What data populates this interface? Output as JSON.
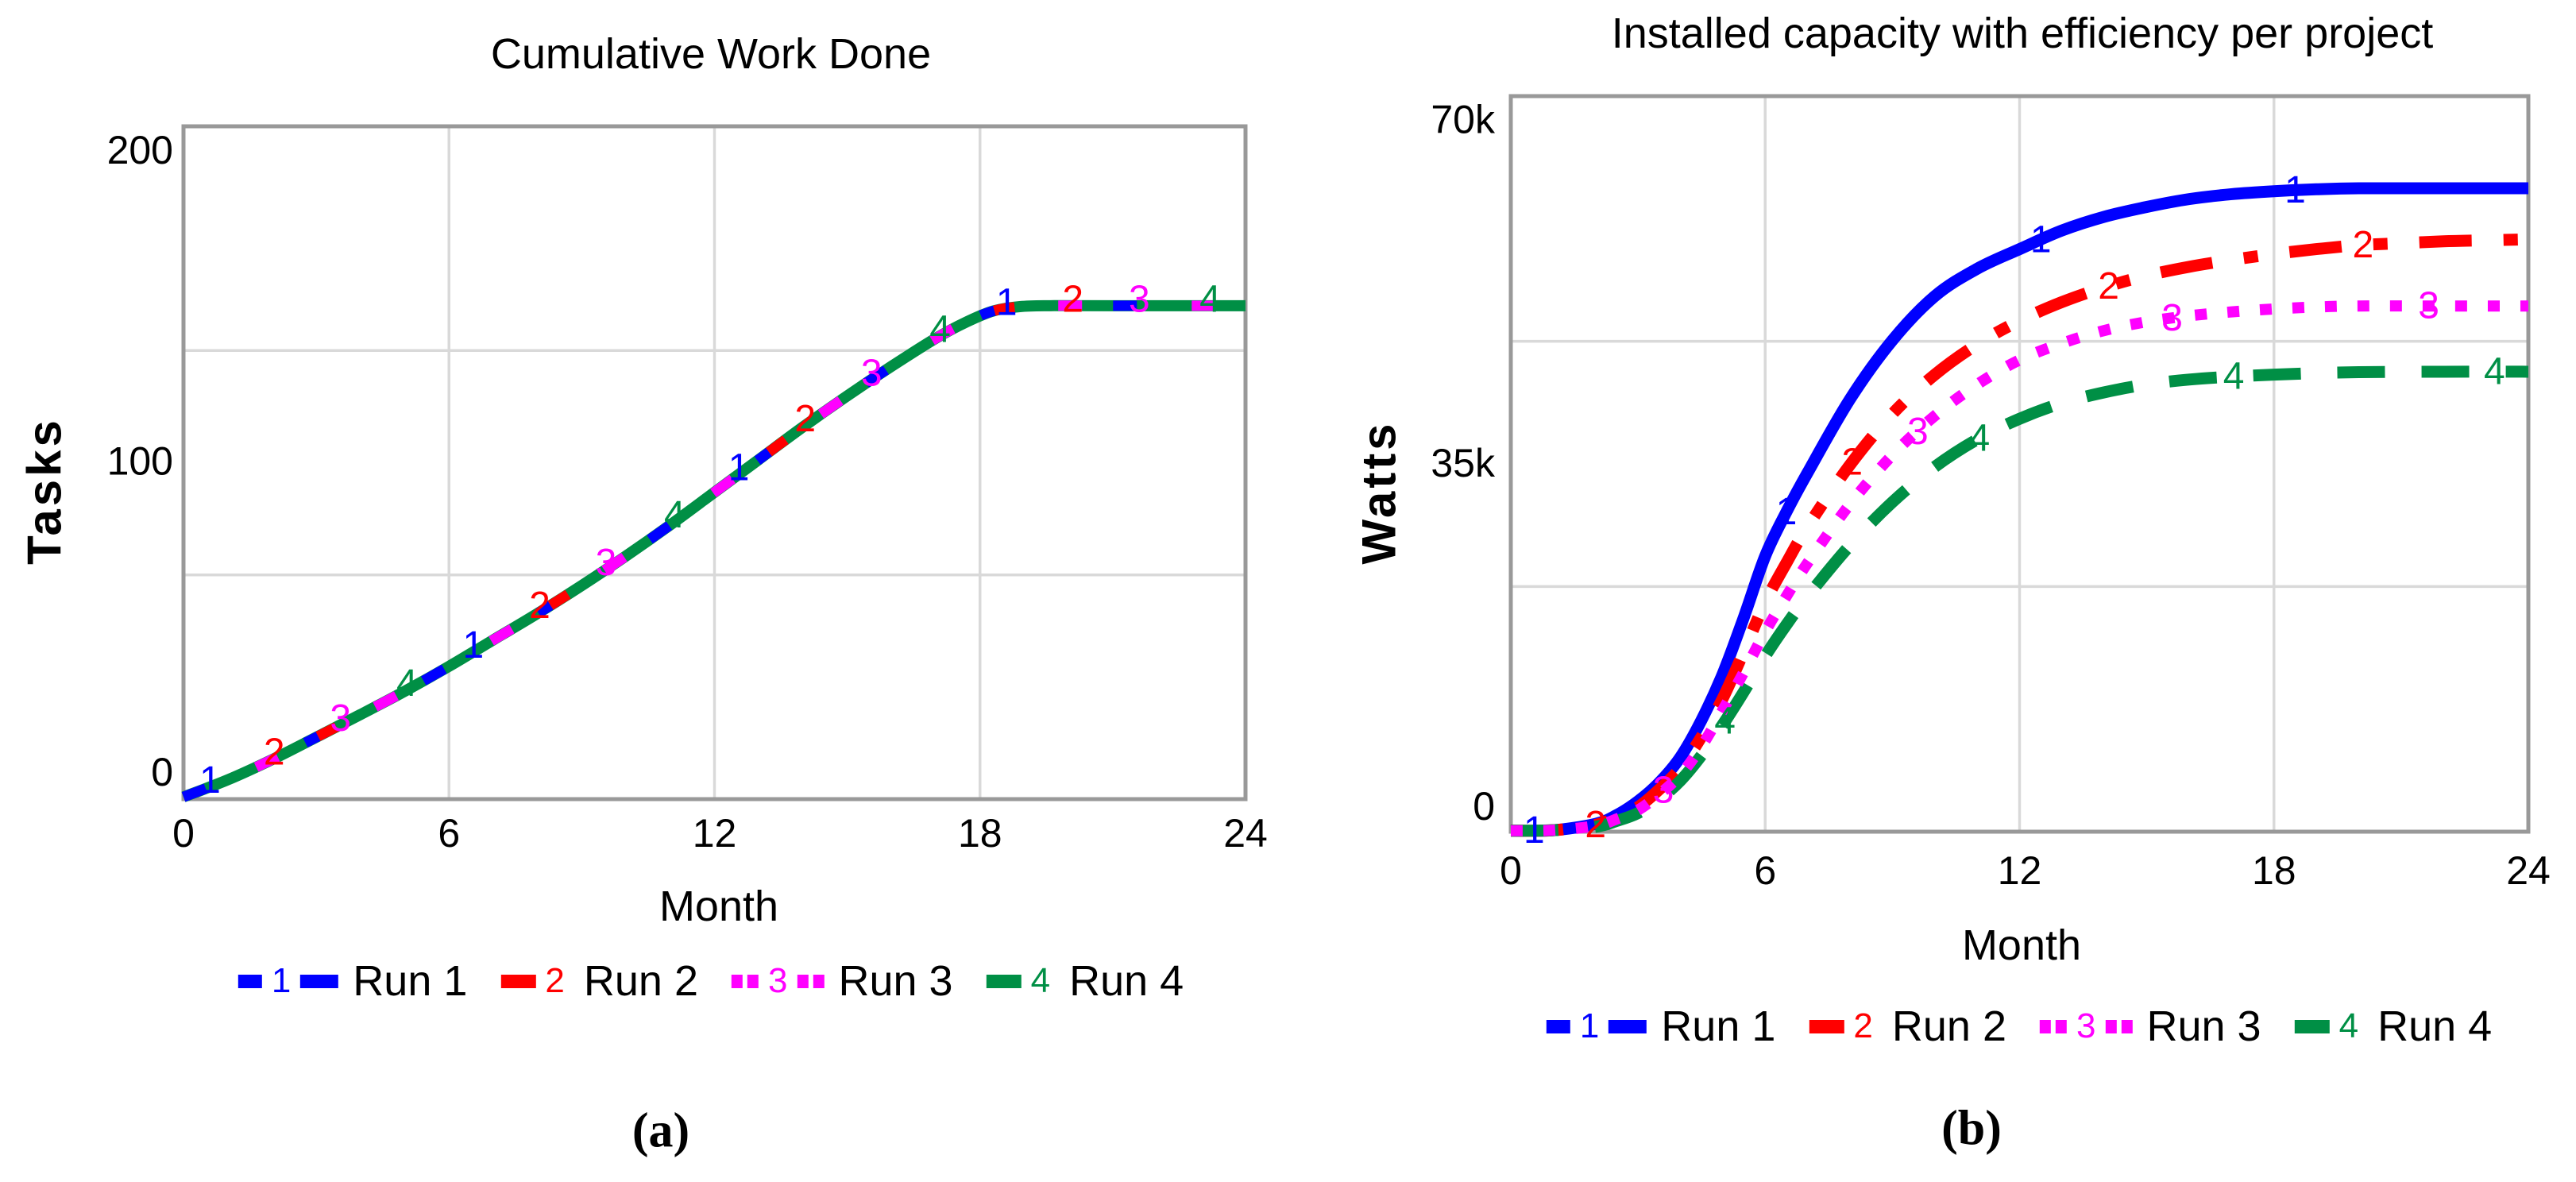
{
  "palette": {
    "frame": "#999999",
    "grid": "#d9d9d9",
    "text": "#000000",
    "run1": "#0000ff",
    "run2": "#ff0000",
    "run3": "#ff00ff",
    "run4": "#008f45"
  },
  "chart_data": [
    {
      "type": "line",
      "panel": "a",
      "caption": "(a)",
      "title": "Cumulative Work Done",
      "xlabel": "Month",
      "ylabel": "Tasks",
      "xlim": [
        0,
        24
      ],
      "ylim_display": [
        -8.7,
        207.7
      ],
      "x_ticks": [
        {
          "v": 0,
          "label": "0"
        },
        {
          "v": 6,
          "label": "6"
        },
        {
          "v": 12,
          "label": "12"
        },
        {
          "v": 18,
          "label": "18"
        },
        {
          "v": 24,
          "label": "24"
        }
      ],
      "y_ticks": [
        {
          "v": 0,
          "label": "0"
        },
        {
          "v": 100,
          "label": "100"
        },
        {
          "v": 200,
          "label": "200"
        }
      ],
      "grid": {
        "v_months": [
          6,
          12,
          18
        ],
        "h_fracs": [
          0.3333,
          0.6667
        ]
      },
      "note": "All four runs follow the same trajectory: roughly linear growth to 150 tasks by month ~18, then constant at 150.",
      "series": [
        {
          "name": "Run 1",
          "num": "1",
          "color": "#0000ff",
          "points": [
            [
              0,
              -8
            ],
            [
              1,
              -2.5
            ],
            [
              2,
              4
            ],
            [
              3,
              11.2
            ],
            [
              4,
              18.5
            ],
            [
              5,
              26
            ],
            [
              6,
              34
            ],
            [
              7,
              42.5
            ],
            [
              8,
              51
            ],
            [
              9,
              60
            ],
            [
              10,
              69.5
            ],
            [
              11,
              79.5
            ],
            [
              12,
              90
            ],
            [
              13,
              100.5
            ],
            [
              14,
              111
            ],
            [
              15,
              121
            ],
            [
              16,
              130.5
            ],
            [
              17,
              139.5
            ],
            [
              17.7,
              144.8
            ],
            [
              18.3,
              148.3
            ],
            [
              18.9,
              149.7
            ],
            [
              19.6,
              150
            ],
            [
              21,
              150
            ],
            [
              24,
              150
            ]
          ],
          "marker_months": [
            0.6,
            6.55,
            12.55,
            18.6
          ]
        },
        {
          "name": "Run 2",
          "num": "2",
          "color": "#ff0000",
          "same_as": 0,
          "marker_months": [
            2.05,
            8.05,
            14.05,
            20.1
          ]
        },
        {
          "name": "Run 3",
          "num": "3",
          "color": "#ff00ff",
          "same_as": 0,
          "marker_months": [
            3.55,
            9.55,
            15.55,
            21.6
          ]
        },
        {
          "name": "Run 4",
          "num": "4",
          "color": "#008f45",
          "same_as": 0,
          "marker_months": [
            5.05,
            11.1,
            17.1,
            23.2
          ]
        }
      ],
      "legend": [
        {
          "label": "Run 1",
          "num": "1",
          "color": "#0000ff"
        },
        {
          "label": "Run 2",
          "num": "2",
          "color": "#ff0000"
        },
        {
          "label": "Run 3",
          "num": "3",
          "color": "#ff00ff"
        },
        {
          "label": "Run 4",
          "num": "4",
          "color": "#008f45"
        }
      ]
    },
    {
      "type": "line",
      "panel": "b",
      "caption": "(b)",
      "title": "Installed capacity with efficiency per project",
      "xlabel": "Month",
      "ylabel": "Watts",
      "xlim": [
        0,
        24
      ],
      "ylim_display": [
        -2600,
        72400
      ],
      "x_ticks": [
        {
          "v": 0,
          "label": "0"
        },
        {
          "v": 6,
          "label": "6"
        },
        {
          "v": 12,
          "label": "12"
        },
        {
          "v": 18,
          "label": "18"
        },
        {
          "v": 24,
          "label": "24"
        }
      ],
      "y_ticks": [
        {
          "v": 0,
          "label": "0"
        },
        {
          "v": 35000,
          "label": "35k"
        },
        {
          "v": 70000,
          "label": "70k"
        }
      ],
      "grid": {
        "v_months": [
          6,
          12,
          18
        ],
        "h_fracs": [
          0.3333,
          0.6667
        ]
      },
      "note": "S-shaped growth curves saturating at different capacities: Run 1 ~63k W, Run 2 ~58k W, Run 3 ~51k W, Run 4 ~44k W.",
      "series": [
        {
          "name": "Run 1",
          "num": "1",
          "color": "#0000ff",
          "points": [
            [
              0,
              -2500
            ],
            [
              1,
              -2450
            ],
            [
              2,
              -1800
            ],
            [
              2.5,
              -900
            ],
            [
              3,
              500
            ],
            [
              3.5,
              2400
            ],
            [
              4,
              5000
            ],
            [
              4.5,
              8800
            ],
            [
              5,
              13500
            ],
            [
              5.5,
              19300
            ],
            [
              6,
              25500
            ],
            [
              6.5,
              30000
            ],
            [
              7,
              34000
            ],
            [
              8,
              41500
            ],
            [
              9,
              47500
            ],
            [
              10,
              52000
            ],
            [
              11,
              54800
            ],
            [
              12,
              56800
            ],
            [
              13,
              58700
            ],
            [
              14,
              60100
            ],
            [
              15,
              61100
            ],
            [
              16,
              61900
            ],
            [
              17,
              62400
            ],
            [
              18,
              62700
            ],
            [
              19,
              62900
            ],
            [
              20,
              63000
            ],
            [
              22,
              63000
            ],
            [
              24,
              63000
            ]
          ],
          "marker_months": [
            0.55,
            6.5,
            12.5,
            18.5
          ]
        },
        {
          "name": "Run 2",
          "num": "2",
          "color": "#ff0000",
          "points": [
            [
              0,
              -2500
            ],
            [
              1,
              -2450
            ],
            [
              2,
              -1900
            ],
            [
              2.5,
              -1100
            ],
            [
              3,
              -100
            ],
            [
              3.5,
              1700
            ],
            [
              4,
              3900
            ],
            [
              4.5,
              7100
            ],
            [
              5,
              11000
            ],
            [
              5.5,
              15800
            ],
            [
              6,
              20800
            ],
            [
              6.5,
              24800
            ],
            [
              7,
              28500
            ],
            [
              8,
              34800
            ],
            [
              9,
              40000
            ],
            [
              10,
              44000
            ],
            [
              11,
              47100
            ],
            [
              12,
              49500
            ],
            [
              13,
              51400
            ],
            [
              14,
              52900
            ],
            [
              15,
              54100
            ],
            [
              16,
              55000
            ],
            [
              17,
              55700
            ],
            [
              18,
              56300
            ],
            [
              19,
              56800
            ],
            [
              20,
              57200
            ],
            [
              21,
              57400
            ],
            [
              22,
              57600
            ],
            [
              23,
              57700
            ],
            [
              24,
              57800
            ]
          ],
          "marker_months": [
            2.0,
            8.05,
            14.1,
            20.1
          ]
        },
        {
          "name": "Run 3",
          "num": "3",
          "color": "#ff00ff",
          "points": [
            [
              0,
              -2500
            ],
            [
              1,
              -2450
            ],
            [
              2,
              -2000
            ],
            [
              2.5,
              -1300
            ],
            [
              3,
              -400
            ],
            [
              3.5,
              1200
            ],
            [
              4,
              3200
            ],
            [
              4.5,
              6100
            ],
            [
              5,
              9800
            ],
            [
              5.5,
              13700
            ],
            [
              6,
              17800
            ],
            [
              6.5,
              21400
            ],
            [
              7,
              24800
            ],
            [
              8,
              30800
            ],
            [
              9,
              35800
            ],
            [
              10,
              39800
            ],
            [
              11,
              43000
            ],
            [
              12,
              45500
            ],
            [
              13,
              47200
            ],
            [
              14,
              48500
            ],
            [
              15,
              49400
            ],
            [
              16,
              50000
            ],
            [
              17,
              50400
            ],
            [
              18,
              50700
            ],
            [
              19,
              50900
            ],
            [
              20,
              51000
            ],
            [
              22,
              51000
            ],
            [
              24,
              51000
            ]
          ],
          "marker_months": [
            3.6,
            9.6,
            15.6,
            21.65
          ]
        },
        {
          "name": "Run 4",
          "num": "4",
          "color": "#008f45",
          "points": [
            [
              0,
              -2500
            ],
            [
              1,
              -2450
            ],
            [
              2,
              -2100
            ],
            [
              2.5,
              -1500
            ],
            [
              3,
              -700
            ],
            [
              3.5,
              700
            ],
            [
              4,
              2600
            ],
            [
              4.5,
              5200
            ],
            [
              5,
              8300
            ],
            [
              5.5,
              11700
            ],
            [
              6,
              15300
            ],
            [
              6.5,
              18500
            ],
            [
              7,
              21400
            ],
            [
              8,
              26600
            ],
            [
              9,
              31000
            ],
            [
              10,
              34600
            ],
            [
              11,
              37400
            ],
            [
              12,
              39500
            ],
            [
              13,
              41100
            ],
            [
              14,
              42200
            ],
            [
              15,
              43000
            ],
            [
              16,
              43500
            ],
            [
              17,
              43800
            ],
            [
              18,
              44000
            ],
            [
              19,
              44150
            ],
            [
              20,
              44250
            ],
            [
              22,
              44300
            ],
            [
              24,
              44300
            ]
          ],
          "marker_months": [
            5.05,
            11.05,
            17.05,
            23.2
          ]
        }
      ],
      "legend": [
        {
          "label": "Run 1",
          "num": "1",
          "color": "#0000ff"
        },
        {
          "label": "Run 2",
          "num": "2",
          "color": "#ff0000"
        },
        {
          "label": "Run 3",
          "num": "3",
          "color": "#ff00ff"
        },
        {
          "label": "Run 4",
          "num": "4",
          "color": "#008f45"
        }
      ]
    }
  ]
}
